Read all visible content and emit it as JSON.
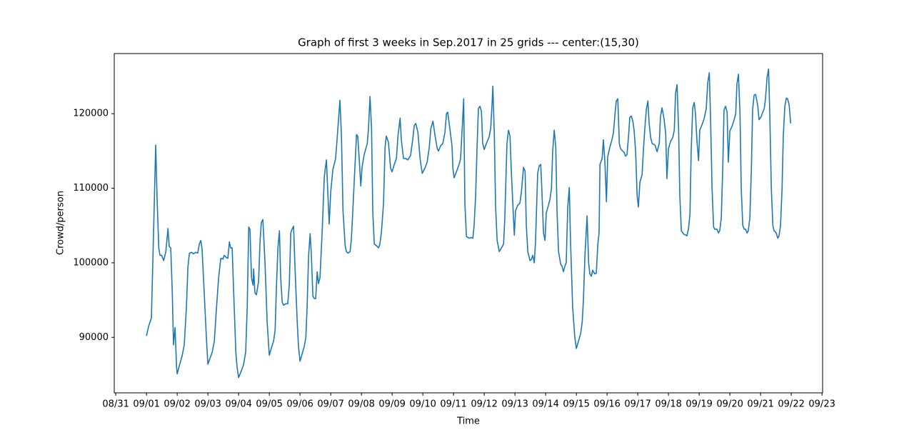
{
  "chart_data": {
    "type": "line",
    "title": "Graph of first 3 weeks in Sep.2017 in 25 grids --- center:(15,30)",
    "x_label": "Time",
    "y_label": "Crowd/person",
    "color": "#1f77b4",
    "grid": false,
    "xlim": [
      -0.05,
      23.02
    ],
    "ylim": [
      82550,
      128070
    ],
    "xticks": [
      {
        "value": 0,
        "label": "08/31"
      },
      {
        "value": 1,
        "label": "09/01"
      },
      {
        "value": 2,
        "label": "09/02"
      },
      {
        "value": 3,
        "label": "09/03"
      },
      {
        "value": 4,
        "label": "09/04"
      },
      {
        "value": 5,
        "label": "09/05"
      },
      {
        "value": 6,
        "label": "09/06"
      },
      {
        "value": 7,
        "label": "09/07"
      },
      {
        "value": 8,
        "label": "09/08"
      },
      {
        "value": 9,
        "label": "09/09"
      },
      {
        "value": 10,
        "label": "09/10"
      },
      {
        "value": 11,
        "label": "09/11"
      },
      {
        "value": 12,
        "label": "09/12"
      },
      {
        "value": 13,
        "label": "09/13"
      },
      {
        "value": 14,
        "label": "09/14"
      },
      {
        "value": 15,
        "label": "09/15"
      },
      {
        "value": 16,
        "label": "09/16"
      },
      {
        "value": 17,
        "label": "09/17"
      },
      {
        "value": 18,
        "label": "09/18"
      },
      {
        "value": 19,
        "label": "09/19"
      },
      {
        "value": 20,
        "label": "09/20"
      },
      {
        "value": 21,
        "label": "09/21"
      },
      {
        "value": 22,
        "label": "09/22"
      },
      {
        "value": 23,
        "label": "09/23"
      }
    ],
    "yticks": [
      90000,
      100000,
      110000,
      120000
    ],
    "x": [
      1.0,
      1.07,
      1.16,
      1.23,
      1.3,
      1.35,
      1.4,
      1.44,
      1.49,
      1.56,
      1.63,
      1.7,
      1.74,
      1.79,
      1.84,
      1.88,
      1.93,
      1.98,
      2.0,
      2.07,
      2.16,
      2.23,
      2.3,
      2.35,
      2.4,
      2.47,
      2.53,
      2.6,
      2.67,
      2.72,
      2.77,
      2.81,
      2.88,
      2.95,
      3.0,
      3.07,
      3.14,
      3.21,
      3.28,
      3.35,
      3.42,
      3.49,
      3.53,
      3.6,
      3.65,
      3.7,
      3.74,
      3.79,
      3.84,
      3.91,
      3.95,
      4.0,
      4.07,
      4.16,
      4.23,
      4.28,
      4.33,
      4.37,
      4.42,
      4.47,
      4.49,
      4.53,
      4.58,
      4.65,
      4.7,
      4.74,
      4.79,
      4.86,
      4.93,
      5.0,
      5.07,
      5.14,
      5.19,
      5.23,
      5.28,
      5.33,
      5.37,
      5.42,
      5.47,
      5.53,
      5.6,
      5.65,
      5.7,
      5.74,
      5.79,
      5.84,
      5.91,
      5.95,
      6.0,
      6.07,
      6.14,
      6.19,
      6.23,
      6.28,
      6.33,
      6.37,
      6.42,
      6.47,
      6.51,
      6.56,
      6.6,
      6.65,
      6.72,
      6.79,
      6.86,
      6.95,
      7.0,
      7.07,
      7.16,
      7.26,
      7.3,
      7.35,
      7.4,
      7.47,
      7.51,
      7.56,
      7.63,
      7.67,
      7.72,
      7.79,
      7.84,
      7.88,
      7.93,
      7.98,
      8.02,
      8.09,
      8.19,
      8.23,
      8.28,
      8.33,
      8.37,
      8.42,
      8.49,
      8.56,
      8.6,
      8.65,
      8.72,
      8.77,
      8.81,
      8.88,
      8.95,
      9.0,
      9.07,
      9.14,
      9.19,
      9.26,
      9.3,
      9.37,
      9.44,
      9.51,
      9.6,
      9.67,
      9.72,
      9.77,
      9.84,
      9.91,
      9.98,
      10.07,
      10.14,
      10.21,
      10.26,
      10.33,
      10.4,
      10.47,
      10.51,
      10.58,
      10.65,
      10.72,
      10.77,
      10.81,
      10.88,
      10.95,
      10.98,
      11.02,
      11.12,
      11.19,
      11.23,
      11.3,
      11.33,
      11.37,
      11.42,
      11.51,
      11.58,
      11.63,
      11.67,
      11.72,
      11.77,
      11.81,
      11.86,
      11.91,
      11.95,
      12.0,
      12.07,
      12.16,
      12.21,
      12.26,
      12.28,
      12.33,
      12.37,
      12.42,
      12.49,
      12.56,
      12.63,
      12.67,
      12.74,
      12.79,
      12.84,
      12.88,
      12.93,
      12.98,
      13.02,
      13.09,
      13.16,
      13.21,
      13.28,
      13.33,
      13.37,
      13.42,
      13.49,
      13.53,
      13.58,
      13.63,
      13.67,
      13.74,
      13.79,
      13.84,
      13.88,
      13.93,
      13.98,
      14.02,
      14.09,
      14.14,
      14.19,
      14.23,
      14.28,
      14.33,
      14.37,
      14.42,
      14.49,
      14.53,
      14.58,
      14.63,
      14.67,
      14.72,
      14.77,
      14.81,
      14.88,
      14.95,
      15.0,
      15.07,
      15.14,
      15.19,
      15.23,
      15.28,
      15.35,
      15.4,
      15.44,
      15.49,
      15.53,
      15.6,
      15.65,
      15.7,
      15.74,
      15.77,
      15.84,
      15.88,
      15.93,
      15.98,
      16.02,
      16.09,
      16.16,
      16.21,
      16.26,
      16.3,
      16.35,
      16.4,
      16.44,
      16.51,
      16.56,
      16.6,
      16.65,
      16.7,
      16.74,
      16.79,
      16.84,
      16.88,
      16.93,
      16.98,
      17.02,
      17.07,
      17.14,
      17.19,
      17.23,
      17.28,
      17.33,
      17.37,
      17.42,
      17.47,
      17.56,
      17.63,
      17.7,
      17.74,
      17.79,
      17.86,
      17.91,
      17.95,
      18.0,
      18.07,
      18.14,
      18.19,
      18.23,
      18.28,
      18.33,
      18.37,
      18.42,
      18.47,
      18.51,
      18.58,
      18.6,
      18.65,
      18.7,
      18.74,
      18.79,
      18.84,
      18.88,
      18.93,
      18.98,
      19.02,
      19.09,
      19.16,
      19.23,
      19.28,
      19.33,
      19.37,
      19.42,
      19.47,
      19.51,
      19.58,
      19.63,
      19.67,
      19.72,
      19.77,
      19.81,
      19.86,
      19.91,
      19.95,
      20.0,
      20.07,
      20.14,
      20.19,
      20.23,
      20.28,
      20.33,
      20.37,
      20.42,
      20.47,
      20.51,
      20.56,
      20.6,
      20.65,
      20.7,
      20.74,
      20.79,
      20.84,
      20.91,
      20.95,
      21.02,
      21.07,
      21.12,
      21.16,
      21.21,
      21.26,
      21.3,
      21.35,
      21.4,
      21.44,
      21.51,
      21.56,
      21.6,
      21.65,
      21.7,
      21.74,
      21.79,
      21.84,
      21.88,
      21.93,
      21.98
    ],
    "values": [
      90200,
      91500,
      92600,
      104000,
      115800,
      108000,
      102000,
      101000,
      101000,
      100300,
      101500,
      104600,
      102200,
      102000,
      96000,
      89000,
      91300,
      86000,
      85100,
      86200,
      87500,
      89000,
      94000,
      99500,
      101300,
      101400,
      101200,
      101400,
      101300,
      102500,
      103000,
      101800,
      96000,
      90000,
      86400,
      87200,
      88000,
      89500,
      94000,
      98000,
      100600,
      100500,
      101000,
      100700,
      100600,
      102800,
      102000,
      102000,
      96000,
      88000,
      86000,
      84600,
      85300,
      86300,
      88000,
      94000,
      104800,
      104500,
      98000,
      97000,
      99200,
      96000,
      95700,
      97500,
      103000,
      105400,
      105800,
      100000,
      92000,
      87600,
      88600,
      89500,
      91000,
      96500,
      102000,
      104300,
      98000,
      94700,
      94300,
      94500,
      94500,
      97000,
      104000,
      104500,
      104900,
      99000,
      92000,
      88800,
      86800,
      87800,
      88800,
      90000,
      94000,
      101000,
      103900,
      101000,
      95500,
      95200,
      95200,
      98800,
      97200,
      98000,
      104000,
      111500,
      113800,
      105200,
      109500,
      112500,
      114000,
      119500,
      121800,
      117000,
      107000,
      102300,
      101500,
      101300,
      101500,
      103000,
      107000,
      113000,
      117200,
      117000,
      113800,
      110300,
      112800,
      114500,
      116000,
      118000,
      122300,
      118000,
      106800,
      102500,
      102300,
      102000,
      102500,
      104000,
      108000,
      115500,
      117000,
      116200,
      112700,
      112200,
      113200,
      114000,
      117000,
      119400,
      116500,
      114000,
      114000,
      113800,
      114400,
      116500,
      118400,
      118700,
      117500,
      114000,
      112000,
      112700,
      113500,
      115500,
      118000,
      119000,
      117000,
      115300,
      115000,
      115700,
      116000,
      117500,
      120000,
      120200,
      118000,
      115700,
      112600,
      111400,
      112500,
      113300,
      114000,
      119500,
      122000,
      108000,
      103500,
      103300,
      103400,
      103300,
      105000,
      109000,
      116000,
      120700,
      121000,
      120300,
      116000,
      115200,
      116000,
      116900,
      118000,
      121700,
      123700,
      117000,
      107500,
      103000,
      101500,
      102000,
      102500,
      106000,
      116000,
      117800,
      117000,
      112500,
      108000,
      103700,
      107000,
      107700,
      108000,
      109500,
      112800,
      112300,
      105000,
      101500,
      100300,
      100400,
      101000,
      100000,
      102800,
      112000,
      113000,
      113200,
      109500,
      104000,
      103000,
      106700,
      107700,
      108500,
      110000,
      115000,
      117800,
      115500,
      107000,
      101500,
      99800,
      99600,
      98800,
      99600,
      100000,
      107500,
      110100,
      103000,
      94000,
      90000,
      88500,
      89500,
      90500,
      92000,
      95000,
      101000,
      106300,
      100000,
      98500,
      98200,
      99000,
      98500,
      98600,
      102500,
      104000,
      113200,
      114000,
      116500,
      113500,
      108200,
      114200,
      115500,
      116500,
      117500,
      120000,
      121700,
      122000,
      116000,
      115300,
      115000,
      114800,
      114300,
      114500,
      117000,
      119500,
      119700,
      119000,
      117800,
      115000,
      109000,
      107500,
      110800,
      111800,
      115500,
      118000,
      120600,
      121700,
      118700,
      116800,
      116000,
      115800,
      114900,
      116000,
      119600,
      120800,
      119200,
      117300,
      111300,
      115300,
      116300,
      116800,
      117800,
      122700,
      123900,
      118000,
      109000,
      104300,
      104000,
      103800,
      103700,
      103600,
      104500,
      106500,
      115000,
      120800,
      121500,
      120000,
      116200,
      113700,
      117800,
      118500,
      119300,
      120700,
      124200,
      125500,
      119600,
      110000,
      104800,
      104500,
      104500,
      104000,
      104300,
      106000,
      113000,
      120500,
      121000,
      120200,
      113500,
      117700,
      118300,
      119200,
      120000,
      124000,
      125300,
      120000,
      110000,
      105000,
      104500,
      104500,
      104000,
      104300,
      106000,
      112500,
      120500,
      122500,
      122600,
      121000,
      119200,
      119600,
      120200,
      120700,
      122000,
      124800,
      126000,
      120000,
      110000,
      105000,
      104300,
      104000,
      103300,
      103600,
      105000,
      110000,
      117000,
      121000,
      122100,
      122000,
      121200,
      118700
    ]
  }
}
